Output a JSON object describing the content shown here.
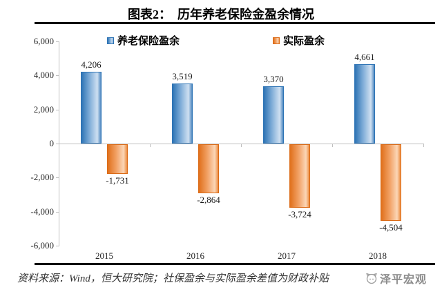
{
  "header": {
    "title": "图表2：  历年养老保险金盈余情况"
  },
  "chart_data": {
    "type": "bar",
    "title": "图表2： 历年养老保险金盈余情况",
    "categories": [
      "2015",
      "2016",
      "2017",
      "2018"
    ],
    "series": [
      {
        "name": "养老保险盈余",
        "color": "#2E74B5",
        "values": [
          4206,
          3519,
          3370,
          4661
        ],
        "labels": [
          "4,206",
          "3,519",
          "3,370",
          "4,661"
        ]
      },
      {
        "name": "实际盈余",
        "color": "#ED7D31",
        "values": [
          -1731,
          -2864,
          -3724,
          -4504
        ],
        "labels": [
          "-1,731",
          "-2,864",
          "-3,724",
          "-4,504"
        ]
      }
    ],
    "ylim": [
      -6000,
      6000
    ],
    "yticks": [
      {
        "value": 6000,
        "label": "6,000"
      },
      {
        "value": 4000,
        "label": "4,000"
      },
      {
        "value": 2000,
        "label": "2,000"
      },
      {
        "value": 0,
        "label": "0"
      },
      {
        "value": -2000,
        "label": "-2,000"
      },
      {
        "value": -4000,
        "label": "-4,000"
      },
      {
        "value": -6000,
        "label": "-6,000"
      }
    ],
    "xlabel": "",
    "ylabel": "",
    "grid": false,
    "legend_position": "top"
  },
  "footer": {
    "source_text": "资料来源：Wind，恒大研究院；社保盈余与实际盈余差值为财政补贴",
    "watermark": "泽平宏观"
  },
  "colors": {
    "series_pension": "#2E74B5",
    "series_actual": "#ED7D31",
    "axis": "#BFBFBF",
    "rule": "#000000",
    "watermark": "#8C8C8C"
  }
}
